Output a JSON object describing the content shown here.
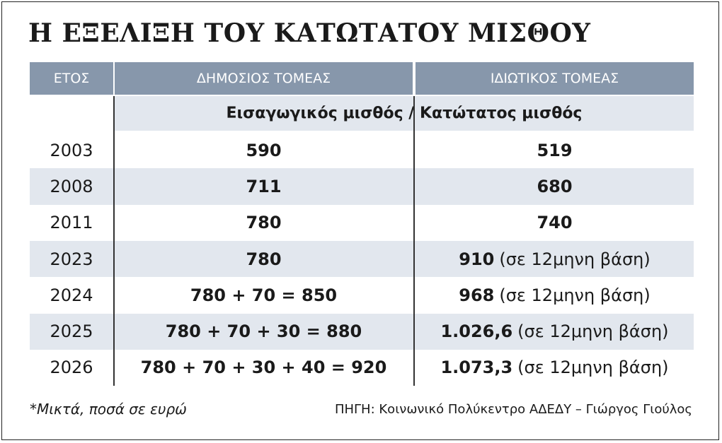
{
  "header": {
    "title": "Η ΕΞΕΛΙΞΗ ΤΟΥ ΚΑΤΩΤΑΤΟΥ ΜΙΣΘΟΥ"
  },
  "table": {
    "columns": [
      "ΕΤΟΣ",
      "ΔΗΜΟΣΙΟΣ ΤΟΜΕΑΣ",
      "ΙΔΙΩΤΙΚΟΣ ΤΟΜΕΑΣ"
    ],
    "subheader": "Εισαγωγικός μισθός / Κατώτατος μισθός",
    "rows": [
      {
        "year": "2003",
        "public": "590",
        "private": {
          "amount": "519"
        }
      },
      {
        "year": "2008",
        "public": "711",
        "private": {
          "amount": "680"
        }
      },
      {
        "year": "2011",
        "public": "780",
        "private": {
          "amount": "740"
        }
      },
      {
        "year": "2023",
        "public": "780",
        "private": {
          "amount": "910",
          "note": "(σε 12μηνη βάση)"
        }
      },
      {
        "year": "2024",
        "public": "780 + 70 = 850",
        "private": {
          "amount": "968",
          "note": "(σε 12μηνη βάση)"
        }
      },
      {
        "year": "2025",
        "public": "780 + 70 + 30 = 880",
        "private": {
          "amount": "1.026,6",
          "note": "(σε 12μηνη βάση)"
        }
      },
      {
        "year": "2026",
        "public": "780 + 70 + 30 + 40 = 920",
        "private": {
          "amount": "1.073,3",
          "note": "(σε 12μηνη βάση)"
        }
      }
    ]
  },
  "footer": {
    "note": "*Μικτά, ποσά σε ευρώ",
    "source": "ΠΗΓΗ: Κοινωνικό Πολύκεντρο ΑΔΕΔΥ – Γιώργος Γιούλος"
  }
}
